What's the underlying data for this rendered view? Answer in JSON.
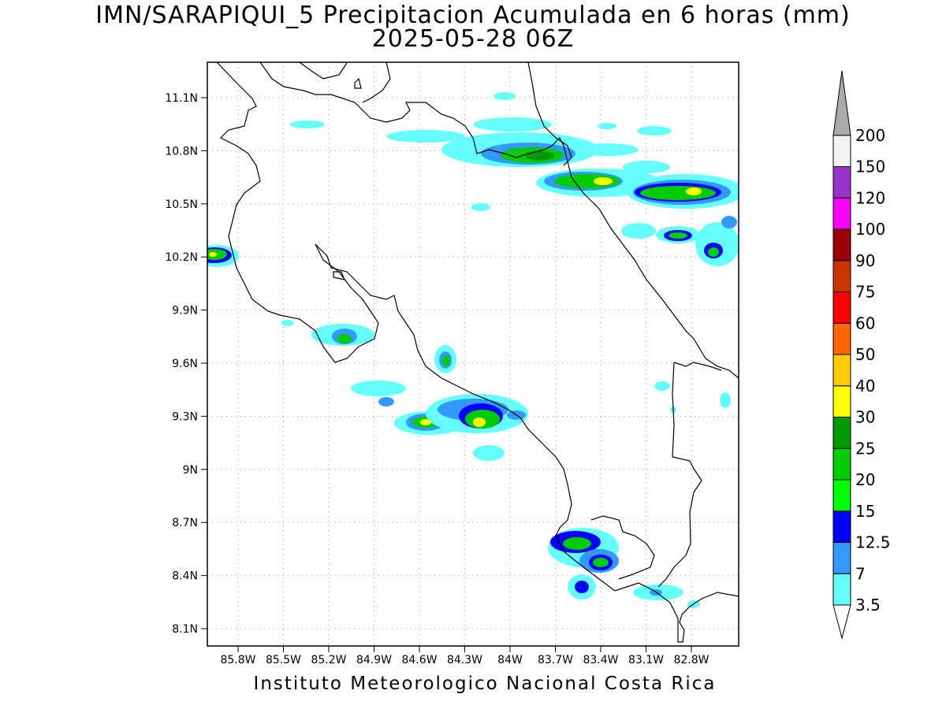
{
  "title": {
    "line1": "IMN/SARAPIQUI_5 Precipitacion Acumulada en 6 horas (mm)",
    "line2": "2025-05-28 06Z"
  },
  "footer": "Instituto Meteorologico Nacional Costa Rica",
  "map": {
    "lat_ticks": [
      "11.1N",
      "10.8N",
      "10.5N",
      "10.2N",
      "9.9N",
      "9.6N",
      "9.3N",
      "9N",
      "8.7N",
      "8.4N",
      "8.1N"
    ],
    "lon_ticks": [
      "85.8W",
      "85.5W",
      "85.2W",
      "84.9W",
      "84.6W",
      "84.3W",
      "84W",
      "83.7W",
      "83.4W",
      "83.1W",
      "82.8W"
    ]
  },
  "colorbar": {
    "levels": [
      {
        "label": "3.5",
        "color": "#66ffff"
      },
      {
        "label": "7",
        "color": "#3399ff"
      },
      {
        "label": "12.5",
        "color": "#0000ff"
      },
      {
        "label": "15",
        "color": "#00ff00"
      },
      {
        "label": "20",
        "color": "#00cc00"
      },
      {
        "label": "25",
        "color": "#009900"
      },
      {
        "label": "30",
        "color": "#ffff00"
      },
      {
        "label": "40",
        "color": "#ffcc00"
      },
      {
        "label": "50",
        "color": "#ff6600"
      },
      {
        "label": "60",
        "color": "#ff0000"
      },
      {
        "label": "75",
        "color": "#cc3300"
      },
      {
        "label": "90",
        "color": "#990000"
      },
      {
        "label": "100",
        "color": "#ff00ff"
      },
      {
        "label": "120",
        "color": "#9933cc"
      },
      {
        "label": "150",
        "color": "#f2f2f2"
      },
      {
        "label": "200",
        "color": "#aaaaaa"
      }
    ],
    "colors": [
      "#66ffff",
      "#3399ff",
      "#0000ff",
      "#00ff00",
      "#00cc00",
      "#009900",
      "#ffff00",
      "#ffcc00",
      "#ff6600",
      "#ff0000",
      "#cc3300",
      "#990000",
      "#ff00ff",
      "#9933cc",
      "#f2f2f2",
      "#aaaaaa"
    ]
  }
}
